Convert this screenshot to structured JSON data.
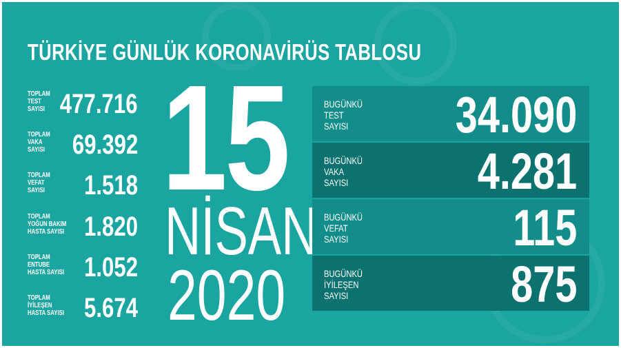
{
  "title": "TÜRKİYE GÜNLÜK KORONAVİRÜS TABLOSU",
  "colors": {
    "background": "#1aa5a1",
    "panel_light": "#138d8a",
    "panel_dark": "#0b7270",
    "text": "#ffffff"
  },
  "totals": [
    {
      "label": [
        "TOPLAM",
        "TEST",
        "SAYISI"
      ],
      "value": "477.716"
    },
    {
      "label": [
        "TOPLAM",
        "VAKA",
        "SAYISI"
      ],
      "value": "69.392"
    },
    {
      "label": [
        "TOPLAM",
        "VEFAT",
        "SAYISI"
      ],
      "value": "1.518"
    },
    {
      "label": [
        "TOPLAM",
        "YOĞUN BAKIM",
        "HASTA SAYISI"
      ],
      "value": "1.820"
    },
    {
      "label": [
        "TOPLAM",
        "ENTUBE",
        "HASTA SAYISI"
      ],
      "value": "1.052"
    },
    {
      "label": [
        "TOPLAM",
        "İYİLEŞEN",
        "HASTA SAYISI"
      ],
      "value": "5.674"
    }
  ],
  "date": {
    "day": "15",
    "month": "NİSAN",
    "year": "2020"
  },
  "daily": [
    {
      "label": [
        "BUGÜNKÜ",
        "TEST",
        "SAYISI"
      ],
      "value": "34.090"
    },
    {
      "label": [
        "BUGÜNKÜ",
        "VAKA",
        "SAYISI"
      ],
      "value": "4.281"
    },
    {
      "label": [
        "BUGÜNKÜ",
        "VEFAT",
        "SAYISI"
      ],
      "value": "115"
    },
    {
      "label": [
        "BUGÜNKÜ",
        "İYİLEŞEN",
        "SAYISI"
      ],
      "value": "875"
    }
  ]
}
